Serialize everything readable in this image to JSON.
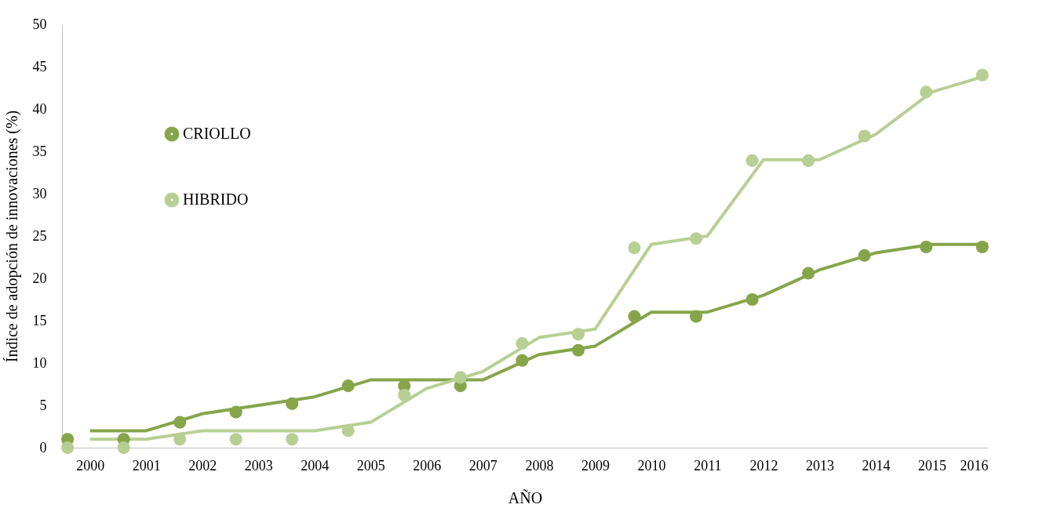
{
  "chart_data": {
    "type": "line",
    "xlabel": "AÑO",
    "ylabel": "Índice de adopción de innovaciones (%)",
    "xlim": [
      1999.5,
      2016
    ],
    "xticks": [
      2000,
      2001,
      2002,
      2003,
      2004,
      2005,
      2006,
      2007,
      2008,
      2009,
      2010,
      2011,
      2012,
      2013,
      2014,
      2015,
      2016
    ],
    "ylim": [
      0,
      50
    ],
    "yticks": [
      0,
      5,
      10,
      15,
      20,
      25,
      30,
      35,
      40,
      45,
      50
    ],
    "grid": false,
    "legend": "top left",
    "series": [
      {
        "name": "CRIOLLO",
        "marker": "none",
        "color": "#86a54a",
        "x": [
          2000,
          2001,
          2002,
          2003,
          2004,
          2005,
          2006,
          2007,
          2008,
          2009,
          2010,
          2011,
          2012,
          2013,
          2014,
          2015,
          2016
        ],
        "values": [
          2,
          2,
          4,
          5,
          6,
          8,
          8,
          8,
          11,
          12,
          16,
          16,
          18,
          21,
          23,
          24,
          24
        ]
      },
      {
        "name": "HIBRIDO",
        "marker": "none",
        "color": "#b8cf94",
        "x": [
          2000,
          2001,
          2002,
          2003,
          2004,
          2005,
          2006,
          2007,
          2008,
          2009,
          2010,
          2011,
          2012,
          2013,
          2014,
          2015,
          2016
        ],
        "values": [
          1,
          1,
          2,
          2,
          2,
          3,
          7,
          9,
          13,
          14,
          24,
          25,
          34,
          34,
          37,
          42,
          44
        ]
      },
      {
        "type": "scatter",
        "marker": "circle",
        "color": "#86a54a",
        "x": [
          1999.6,
          2000.6,
          2001.6,
          2002.6,
          2003.6,
          2004.6,
          2005.6,
          2006.6,
          2007.7,
          2008.7,
          2009.7,
          2010.8,
          2011.8,
          2012.8,
          2013.8,
          2014.9,
          2015.9
        ],
        "values": [
          1,
          1,
          3,
          4.2,
          5.2,
          7.3,
          7.3,
          7.3,
          10.3,
          11.5,
          15.5,
          15.5,
          17.5,
          20.6,
          22.7,
          23.7,
          23.7
        ]
      },
      {
        "type": "scatter",
        "marker": "circle",
        "color": "#b8cf94",
        "x": [
          1999.6,
          2000.6,
          2001.6,
          2002.6,
          2003.6,
          2004.6,
          2005.6,
          2006.6,
          2007.7,
          2008.7,
          2009.7,
          2010.8,
          2011.8,
          2012.8,
          2013.8,
          2014.9,
          2015.9
        ],
        "values": [
          0,
          0,
          1,
          1,
          1,
          2,
          6.2,
          8.3,
          12.3,
          13.4,
          23.6,
          24.7,
          33.9,
          33.9,
          36.8,
          42,
          44
        ]
      }
    ]
  }
}
